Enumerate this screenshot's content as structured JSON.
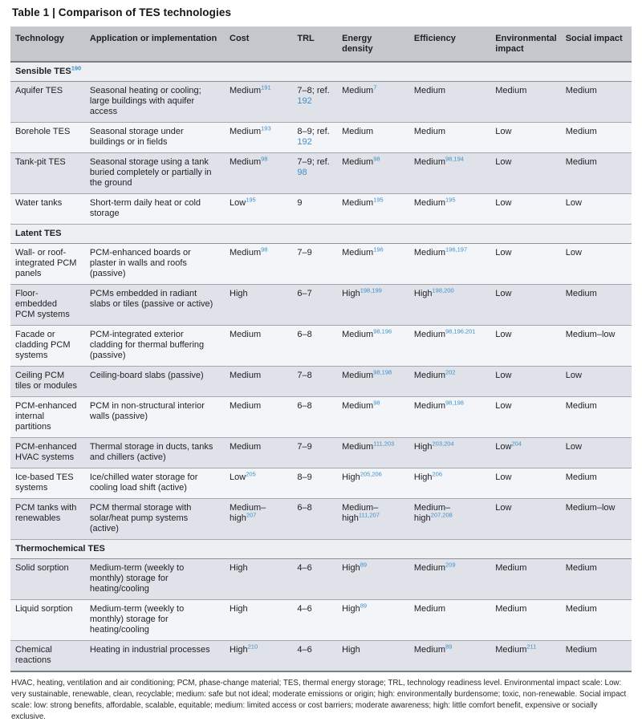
{
  "title": "Table 1 | Comparison of TES technologies",
  "colors": {
    "citation_link": "#3e8fc8",
    "header_bg": "#c5c7cd",
    "section_row_bg": "#edeff3",
    "row_gray": "#dfe2e8",
    "row_light": "#f4f5f8",
    "text": "#1e1f24"
  },
  "table": {
    "columns": [
      "Technology",
      "Application or implementation",
      "Cost",
      "TRL",
      "Energy density",
      "Efficiency",
      "Environmental impact",
      "Social impact"
    ],
    "sections": [
      {
        "label": "Sensible TES",
        "sup": "190",
        "rows": [
          {
            "technology": "Aquifer TES",
            "application": "Seasonal heating or cooling; large buildings with aquifer access",
            "cells": {
              "cost": {
                "t": "Medium",
                "sup": "191"
              },
              "trl": {
                "t": "7–8; ref.",
                "ref": "192"
              },
              "energy": {
                "t": "Medium",
                "sup": "7"
              },
              "efficiency": {
                "t": "Medium"
              },
              "environmental": {
                "t": "Medium"
              },
              "social": {
                "t": "Medium"
              }
            }
          },
          {
            "technology": "Borehole TES",
            "application": "Seasonal storage under buildings or in fields",
            "cells": {
              "cost": {
                "t": "Medium",
                "sup": "193"
              },
              "trl": {
                "t": "8–9; ref.",
                "ref": "192"
              },
              "energy": {
                "t": "Medium"
              },
              "efficiency": {
                "t": "Medium"
              },
              "environmental": {
                "t": "Low"
              },
              "social": {
                "t": "Medium"
              }
            }
          },
          {
            "technology": "Tank-pit TES",
            "application": "Seasonal storage using a tank buried completely or partially in the ground",
            "cells": {
              "cost": {
                "t": "Medium",
                "sup": "98"
              },
              "trl": {
                "t": "7–9; ref.",
                "ref": "98"
              },
              "energy": {
                "t": "Medium",
                "sup": "98"
              },
              "efficiency": {
                "t": "Medium",
                "sup": "98,194"
              },
              "environmental": {
                "t": "Low"
              },
              "social": {
                "t": "Medium"
              }
            }
          },
          {
            "technology": "Water tanks",
            "application": "Short-term daily heat or cold storage",
            "cells": {
              "cost": {
                "t": "Low",
                "sup": "195"
              },
              "trl": {
                "t": "9"
              },
              "energy": {
                "t": "Medium",
                "sup": "195"
              },
              "efficiency": {
                "t": "Medium",
                "sup": "195"
              },
              "environmental": {
                "t": "Low"
              },
              "social": {
                "t": "Low"
              }
            }
          }
        ]
      },
      {
        "label": "Latent TES",
        "sup": "",
        "rows": [
          {
            "technology": "Wall- or roof-integrated PCM panels",
            "application": "PCM-enhanced boards or plaster in walls and roofs (passive)",
            "cells": {
              "cost": {
                "t": "Medium",
                "sup": "98"
              },
              "trl": {
                "t": "7–9"
              },
              "energy": {
                "t": "Medium",
                "sup": "196"
              },
              "efficiency": {
                "t": "Medium",
                "sup": "196,197"
              },
              "environmental": {
                "t": "Low"
              },
              "social": {
                "t": "Low"
              }
            }
          },
          {
            "technology": "Floor-embedded PCM systems",
            "application": "PCMs embedded in radiant slabs or tiles (passive or active)",
            "cells": {
              "cost": {
                "t": "High"
              },
              "trl": {
                "t": "6–7"
              },
              "energy": {
                "t": "High",
                "sup": "198,199"
              },
              "efficiency": {
                "t": "High",
                "sup": "198,200"
              },
              "environmental": {
                "t": "Low"
              },
              "social": {
                "t": "Medium"
              }
            }
          },
          {
            "technology": "Facade or cladding PCM systems",
            "application": "PCM-integrated exterior cladding for thermal buffering (passive)",
            "cells": {
              "cost": {
                "t": "Medium"
              },
              "trl": {
                "t": "6–8"
              },
              "energy": {
                "t": "Medium",
                "sup": "98,196"
              },
              "efficiency": {
                "t": "Medium",
                "sup": "98,196,201"
              },
              "environmental": {
                "t": "Low"
              },
              "social": {
                "t": "Medium–low"
              }
            }
          },
          {
            "technology": "Ceiling PCM tiles or modules",
            "application": "Ceiling-board slabs (passive)",
            "cells": {
              "cost": {
                "t": "Medium"
              },
              "trl": {
                "t": "7–8"
              },
              "energy": {
                "t": "Medium",
                "sup": "98,198"
              },
              "efficiency": {
                "t": "Medium",
                "sup": "202"
              },
              "environmental": {
                "t": "Low"
              },
              "social": {
                "t": "Low"
              }
            }
          },
          {
            "technology": "PCM-enhanced internal partitions",
            "application": "PCM in non-structural interior walls (passive)",
            "cells": {
              "cost": {
                "t": "Medium"
              },
              "trl": {
                "t": "6–8"
              },
              "energy": {
                "t": "Medium",
                "sup": "98"
              },
              "efficiency": {
                "t": "Medium",
                "sup": "98,198"
              },
              "environmental": {
                "t": "Low"
              },
              "social": {
                "t": "Medium"
              }
            }
          },
          {
            "technology": "PCM-enhanced HVAC systems",
            "application": "Thermal storage in ducts, tanks and chillers (active)",
            "cells": {
              "cost": {
                "t": "Medium"
              },
              "trl": {
                "t": "7–9"
              },
              "energy": {
                "t": "Medium",
                "sup": "111,203"
              },
              "efficiency": {
                "t": "High",
                "sup": "203,204"
              },
              "environmental": {
                "t": "Low",
                "sup": "204"
              },
              "social": {
                "t": "Low"
              }
            }
          },
          {
            "technology": "Ice-based TES systems",
            "application": "Ice/chilled water storage for cooling load shift (active)",
            "cells": {
              "cost": {
                "t": "Low",
                "sup": "205"
              },
              "trl": {
                "t": "8–9"
              },
              "energy": {
                "t": "High",
                "sup": "205,206"
              },
              "efficiency": {
                "t": "High",
                "sup": "206"
              },
              "environmental": {
                "t": "Low"
              },
              "social": {
                "t": "Medium"
              }
            }
          },
          {
            "technology": "PCM tanks with renewables",
            "application": "PCM thermal storage with solar/heat pump systems (active)",
            "cells": {
              "cost": {
                "t": "Medium–high",
                "sup": "207"
              },
              "trl": {
                "t": "6–8"
              },
              "energy": {
                "t": "Medium–high",
                "sup": "111,207"
              },
              "efficiency": {
                "t": "Medium–high",
                "sup": "207,208"
              },
              "environmental": {
                "t": "Low"
              },
              "social": {
                "t": "Medium–low"
              }
            }
          }
        ]
      },
      {
        "label": "Thermochemical TES",
        "sup": "",
        "rows": [
          {
            "technology": "Solid sorption",
            "application": "Medium-term (weekly to monthly) storage for heating/cooling",
            "cells": {
              "cost": {
                "t": "High"
              },
              "trl": {
                "t": "4–6"
              },
              "energy": {
                "t": "High",
                "sup": "89"
              },
              "efficiency": {
                "t": "Medium",
                "sup": "209"
              },
              "environmental": {
                "t": "Medium"
              },
              "social": {
                "t": "Medium"
              }
            }
          },
          {
            "technology": "Liquid sorption",
            "application": "Medium-term (weekly to monthly) storage for heating/cooling",
            "cells": {
              "cost": {
                "t": "High"
              },
              "trl": {
                "t": "4–6"
              },
              "energy": {
                "t": "High",
                "sup": "89"
              },
              "efficiency": {
                "t": "Medium"
              },
              "environmental": {
                "t": "Medium"
              },
              "social": {
                "t": "Medium"
              }
            }
          },
          {
            "technology": "Chemical reactions",
            "application": "Heating in industrial processes",
            "cells": {
              "cost": {
                "t": "High",
                "sup": "210"
              },
              "trl": {
                "t": "4–6"
              },
              "energy": {
                "t": "High"
              },
              "efficiency": {
                "t": "Medium",
                "sup": "89"
              },
              "environmental": {
                "t": "Medium",
                "sup": "211"
              },
              "social": {
                "t": "Medium"
              }
            }
          }
        ]
      }
    ]
  },
  "footnote": "HVAC, heating, ventilation and air conditioning; PCM, phase-change material; TES, thermal energy storage; TRL, technology readiness level. Environmental impact scale: Low: very sustainable, renewable, clean, recyclable; medium: safe but not ideal; moderate emissions or origin; high: environmentally burdensome; toxic, non-renewable. Social impact scale: low: strong benefits, affordable, scalable, equitable; medium: limited access or cost barriers; moderate awareness; high: little comfort benefit, expensive or socially exclusive."
}
